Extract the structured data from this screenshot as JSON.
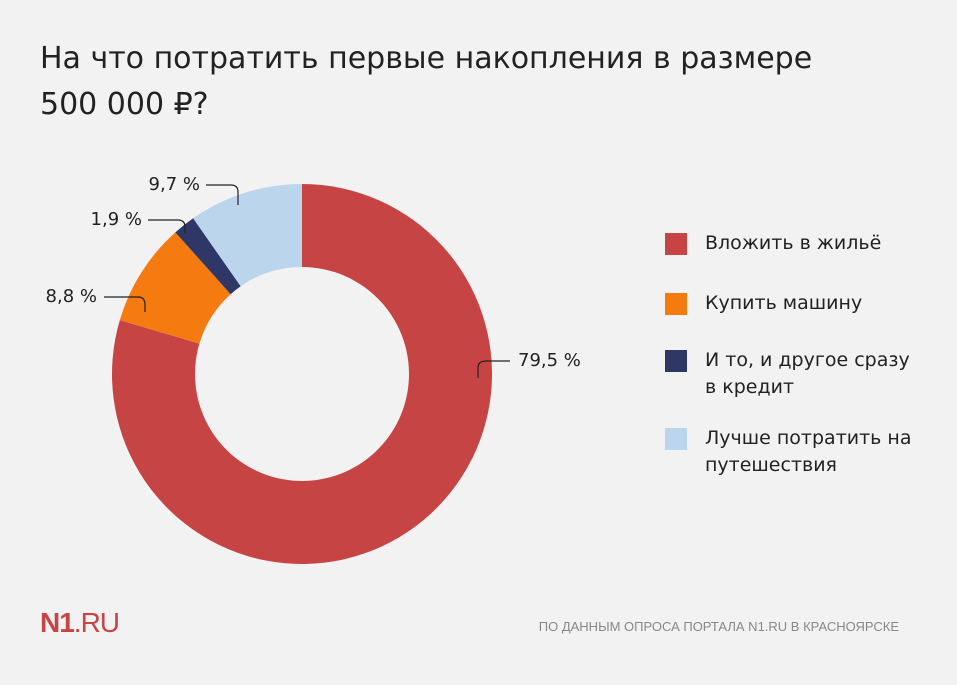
{
  "chart_data": {
    "type": "donut",
    "title": "На что потратить первые накопления в размере 500 000 ₽?",
    "categories": [
      "Вложить в жильё",
      "Купить машину",
      "И то, и другое сразу в кредит",
      "Лучше потратить на путешествия"
    ],
    "values": [
      79.5,
      8.8,
      1.9,
      9.7
    ],
    "value_labels": [
      "79,5 %",
      "8,8 %",
      "1,9 %",
      "9,7 %"
    ],
    "colors": [
      "#c64444",
      "#f57a10",
      "#2f3766",
      "#bad5ec"
    ],
    "legend": "right",
    "source": "ПО ДАННЫМ ОПРОСА ПОРТАЛА N1.RU В КРАСНОЯРСКЕ",
    "logo": {
      "bold": "N1",
      "light": ".RU"
    }
  }
}
